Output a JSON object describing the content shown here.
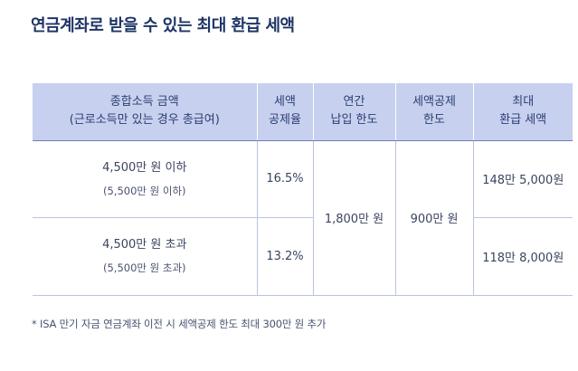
{
  "title": "연금계좌로 받을 수 있는 최대 환급 세액",
  "table": {
    "headers": [
      {
        "line1": "종합소득 금액",
        "line2": "(근로소득만 있는 경우 총급여)"
      },
      {
        "line1": "세액",
        "line2": "공제율"
      },
      {
        "line1": "연간",
        "line2": "납입 한도"
      },
      {
        "line1": "세액공제",
        "line2": "한도"
      },
      {
        "line1": "최대",
        "line2": "환급 세액"
      }
    ],
    "rows": [
      {
        "income_main": "4,500만 원 이하",
        "income_sub": "(5,500만 원 이하)",
        "rate": "16.5%",
        "refund": "148만 5,000원"
      },
      {
        "income_main": "4,500만 원 초과",
        "income_sub": "(5,500만 원 초과)",
        "rate": "13.2%",
        "refund": "118만 8,000원"
      }
    ],
    "annual_limit": "1,800만 원",
    "deduction_limit": "900만 원"
  },
  "footnote": "*  ISA 만기 자금 연금계좌 이전 시 세액공제 한도 최대 300만 원 추가"
}
